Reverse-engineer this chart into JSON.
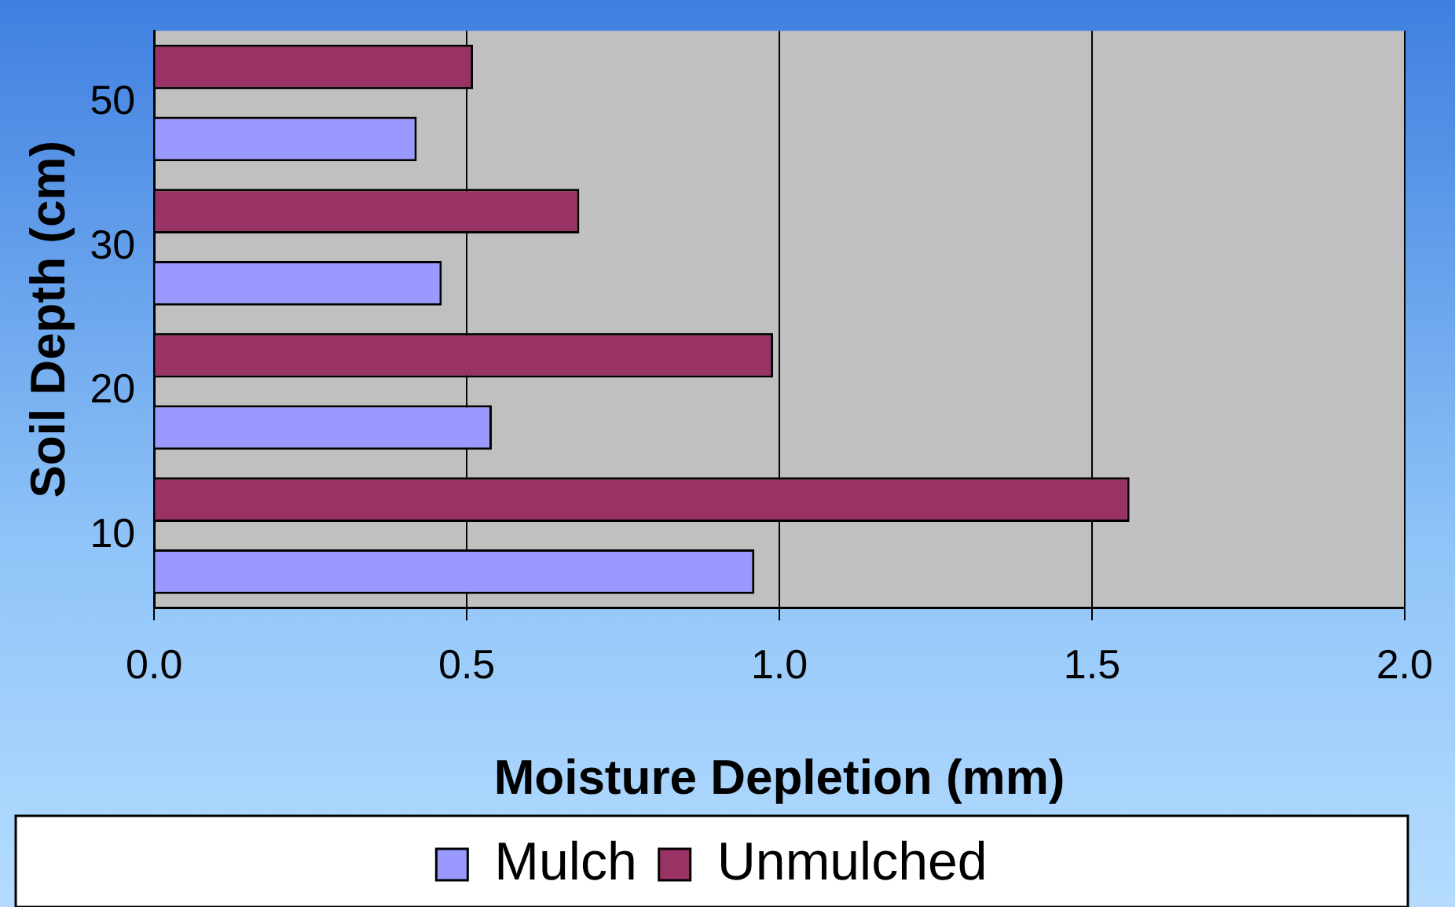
{
  "chart_data": {
    "type": "bar",
    "orientation": "horizontal",
    "xlabel": "Moisture Depletion (mm)",
    "ylabel": "Soil Depth (cm)",
    "categories": [
      "50",
      "30",
      "20",
      "10"
    ],
    "series": [
      {
        "name": "Mulch",
        "color": "#9999ff",
        "values": [
          0.42,
          0.46,
          0.54,
          0.96
        ]
      },
      {
        "name": "Unmulched",
        "color": "#993366",
        "values": [
          0.51,
          0.68,
          0.99,
          1.56
        ]
      }
    ],
    "xlim": [
      0,
      2
    ],
    "xticks": [
      {
        "value": 0,
        "label": "0.0"
      },
      {
        "value": 0.5,
        "label": "0.5"
      },
      {
        "value": 1,
        "label": "1.0"
      },
      {
        "value": 1.5,
        "label": "1.5"
      },
      {
        "value": 2,
        "label": "2.0"
      }
    ],
    "grid": "x",
    "legend": "bottom"
  }
}
